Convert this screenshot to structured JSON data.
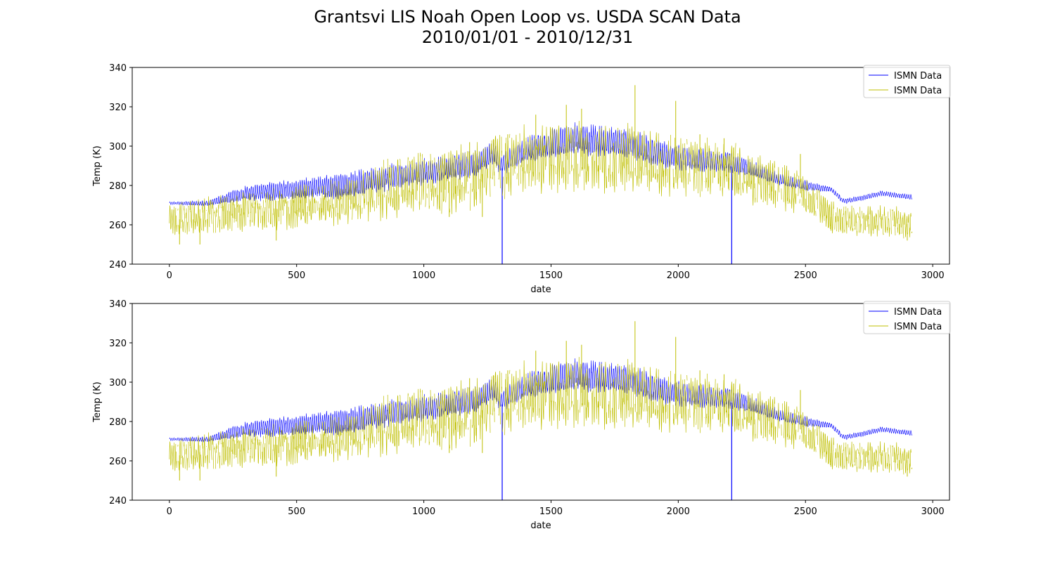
{
  "title_line1": "Grantsvi LIS Noah Open Loop vs. USDA SCAN Data",
  "title_line2": "2010/01/01 - 2010/12/31",
  "colors": {
    "series1": "#0000ff",
    "series2": "#bfbf00"
  },
  "chart_data": [
    {
      "type": "line",
      "xlabel": "date",
      "ylabel": "Temp (K)",
      "xlim": [
        -146,
        3066
      ],
      "ylim": [
        240,
        340
      ],
      "xticks": [
        0,
        500,
        1000,
        1500,
        2000,
        2500,
        3000
      ],
      "yticks": [
        240,
        260,
        280,
        300,
        320,
        340
      ],
      "legend_location": "upper right",
      "grid": false,
      "series": [
        {
          "name": "ISMN Data",
          "color": "#0000ff",
          "style": "diurnal_envelope",
          "x_max": 2919,
          "baseline": [
            [
              0,
              271
            ],
            [
              150,
              271
            ],
            [
              300,
              276
            ],
            [
              500,
              278
            ],
            [
              700,
              280
            ],
            [
              900,
              285
            ],
            [
              1100,
              289
            ],
            [
              1200,
              291
            ],
            [
              1280,
              297
            ],
            [
              1300,
              290
            ],
            [
              1400,
              298
            ],
            [
              1600,
              304
            ],
            [
              1700,
              302
            ],
            [
              1800,
              302
            ],
            [
              1900,
              297
            ],
            [
              2000,
              294
            ],
            [
              2100,
              293
            ],
            [
              2200,
              292
            ],
            [
              2300,
              288
            ],
            [
              2400,
              283
            ],
            [
              2500,
              280
            ],
            [
              2600,
              278
            ],
            [
              2650,
              272
            ],
            [
              2700,
              273
            ],
            [
              2800,
              276
            ],
            [
              2919,
              274
            ]
          ],
          "amplitude": [
            [
              0,
              0.5
            ],
            [
              150,
              1
            ],
            [
              300,
              3
            ],
            [
              500,
              4
            ],
            [
              700,
              5
            ],
            [
              900,
              5
            ],
            [
              1200,
              5
            ],
            [
              1300,
              4
            ],
            [
              1500,
              6
            ],
            [
              1600,
              6
            ],
            [
              1800,
              6
            ],
            [
              2000,
              5
            ],
            [
              2200,
              4
            ],
            [
              2300,
              3
            ],
            [
              2500,
              2
            ],
            [
              2600,
              1
            ],
            [
              2919,
              1
            ]
          ],
          "dropouts": [
            1308,
            2210
          ]
        },
        {
          "name": "ISMN Data",
          "color": "#bfbf00",
          "style": "diurnal_envelope",
          "x_max": 2919,
          "baseline": [
            [
              0,
              262
            ],
            [
              150,
              265
            ],
            [
              300,
              267
            ],
            [
              500,
              269
            ],
            [
              700,
              272
            ],
            [
              900,
              280
            ],
            [
              1100,
              282
            ],
            [
              1200,
              284
            ],
            [
              1300,
              290
            ],
            [
              1500,
              295
            ],
            [
              1600,
              295
            ],
            [
              1700,
              293
            ],
            [
              1800,
              295
            ],
            [
              1900,
              291
            ],
            [
              2000,
              290
            ],
            [
              2200,
              289
            ],
            [
              2300,
              283
            ],
            [
              2400,
              280
            ],
            [
              2500,
              275
            ],
            [
              2600,
              264
            ],
            [
              2700,
              262
            ],
            [
              2800,
              262
            ],
            [
              2919,
              260
            ]
          ],
          "amplitude": [
            [
              0,
              4
            ],
            [
              300,
              5
            ],
            [
              700,
              6
            ],
            [
              900,
              8
            ],
            [
              1300,
              9
            ],
            [
              1600,
              9
            ],
            [
              1900,
              8
            ],
            [
              2200,
              7
            ],
            [
              2400,
              6
            ],
            [
              2600,
              4
            ],
            [
              2919,
              4
            ]
          ],
          "spikes_up": [
            [
              1180,
              302
            ],
            [
              1330,
              306
            ],
            [
              1440,
              316
            ],
            [
              1560,
              321
            ],
            [
              1620,
              319
            ],
            [
              1830,
              331
            ],
            [
              1990,
              323
            ],
            [
              2085,
              306
            ],
            [
              2180,
              304
            ],
            [
              2480,
              296
            ]
          ],
          "spikes_down": [
            [
              40,
              250
            ],
            [
              120,
              250
            ],
            [
              420,
              252
            ],
            [
              1100,
              264
            ],
            [
              1230,
              264
            ],
            [
              2600,
              257
            ],
            [
              2900,
              252
            ]
          ]
        }
      ]
    },
    {
      "type": "line",
      "xlabel": "date",
      "ylabel": "Temp (K)",
      "xlim": [
        -146,
        3066
      ],
      "ylim": [
        240,
        340
      ],
      "xticks": [
        0,
        500,
        1000,
        1500,
        2000,
        2500,
        3000
      ],
      "yticks": [
        240,
        260,
        280,
        300,
        320,
        340
      ],
      "legend_location": "upper right",
      "grid": false,
      "series": [
        {
          "name": "ISMN Data",
          "color": "#0000ff",
          "style": "diurnal_envelope",
          "x_max": 2919,
          "baseline": [
            [
              0,
              271
            ],
            [
              150,
              271
            ],
            [
              300,
              276
            ],
            [
              500,
              278
            ],
            [
              700,
              280
            ],
            [
              900,
              285
            ],
            [
              1100,
              289
            ],
            [
              1200,
              291
            ],
            [
              1280,
              297
            ],
            [
              1300,
              290
            ],
            [
              1400,
              298
            ],
            [
              1600,
              304
            ],
            [
              1700,
              302
            ],
            [
              1800,
              302
            ],
            [
              1900,
              297
            ],
            [
              2000,
              294
            ],
            [
              2100,
              293
            ],
            [
              2200,
              292
            ],
            [
              2300,
              288
            ],
            [
              2400,
              283
            ],
            [
              2500,
              280
            ],
            [
              2600,
              278
            ],
            [
              2650,
              272
            ],
            [
              2700,
              273
            ],
            [
              2800,
              276
            ],
            [
              2919,
              274
            ]
          ],
          "amplitude": [
            [
              0,
              0.5
            ],
            [
              150,
              1
            ],
            [
              300,
              3
            ],
            [
              500,
              4
            ],
            [
              700,
              5
            ],
            [
              900,
              5
            ],
            [
              1200,
              5
            ],
            [
              1300,
              4
            ],
            [
              1500,
              6
            ],
            [
              1600,
              6
            ],
            [
              1800,
              6
            ],
            [
              2000,
              5
            ],
            [
              2200,
              4
            ],
            [
              2300,
              3
            ],
            [
              2500,
              2
            ],
            [
              2600,
              1
            ],
            [
              2919,
              1
            ]
          ],
          "dropouts": [
            1308,
            2210
          ]
        },
        {
          "name": "ISMN Data",
          "color": "#bfbf00",
          "style": "diurnal_envelope",
          "x_max": 2919,
          "baseline": [
            [
              0,
              262
            ],
            [
              150,
              265
            ],
            [
              300,
              267
            ],
            [
              500,
              269
            ],
            [
              700,
              272
            ],
            [
              900,
              280
            ],
            [
              1100,
              282
            ],
            [
              1200,
              284
            ],
            [
              1300,
              290
            ],
            [
              1500,
              295
            ],
            [
              1600,
              295
            ],
            [
              1700,
              293
            ],
            [
              1800,
              295
            ],
            [
              1900,
              291
            ],
            [
              2000,
              290
            ],
            [
              2200,
              289
            ],
            [
              2300,
              283
            ],
            [
              2400,
              280
            ],
            [
              2500,
              275
            ],
            [
              2600,
              264
            ],
            [
              2700,
              262
            ],
            [
              2800,
              262
            ],
            [
              2919,
              260
            ]
          ],
          "amplitude": [
            [
              0,
              4
            ],
            [
              300,
              5
            ],
            [
              700,
              6
            ],
            [
              900,
              8
            ],
            [
              1300,
              9
            ],
            [
              1600,
              9
            ],
            [
              1900,
              8
            ],
            [
              2200,
              7
            ],
            [
              2400,
              6
            ],
            [
              2600,
              4
            ],
            [
              2919,
              4
            ]
          ],
          "spikes_up": [
            [
              1180,
              302
            ],
            [
              1330,
              306
            ],
            [
              1440,
              316
            ],
            [
              1560,
              321
            ],
            [
              1620,
              319
            ],
            [
              1830,
              331
            ],
            [
              1990,
              323
            ],
            [
              2085,
              306
            ],
            [
              2180,
              304
            ],
            [
              2480,
              296
            ]
          ],
          "spikes_down": [
            [
              40,
              250
            ],
            [
              120,
              250
            ],
            [
              420,
              252
            ],
            [
              1100,
              264
            ],
            [
              1230,
              264
            ],
            [
              2600,
              257
            ],
            [
              2900,
              252
            ]
          ]
        }
      ]
    }
  ]
}
